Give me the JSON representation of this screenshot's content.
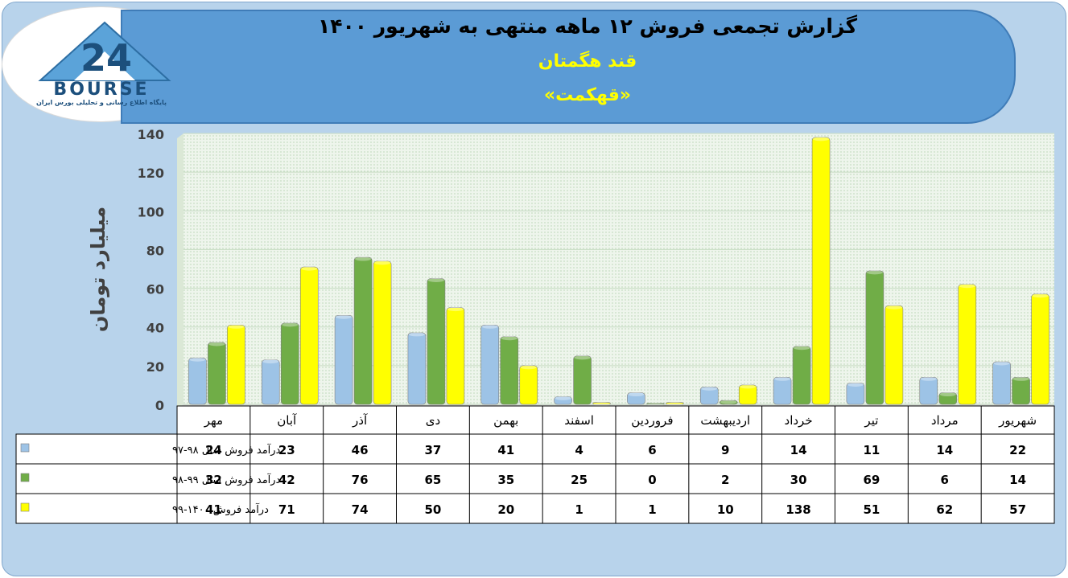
{
  "header": {
    "title": "گزارش تجمعی فروش ۱۲ ماهه منتهی به شهریور ۱۴۰۰",
    "company": "قند هگمتان",
    "symbol": "«قهکمت»"
  },
  "logo": {
    "mark": "24",
    "name": "BOURSE",
    "tagline": "پایگاه اطلاع رسانی و تحلیلی بورس ایران"
  },
  "colors": {
    "series1": "#9dc3e6",
    "series2": "#70ad47",
    "series3": "#ffff00",
    "banner": "#5b9bd5",
    "frame": "#b8d3eb"
  },
  "chart_data": {
    "type": "bar",
    "ylabel": "میلیارد تومان",
    "ylim": [
      0,
      140
    ],
    "yticks": [
      0,
      20,
      40,
      60,
      80,
      100,
      120,
      140
    ],
    "grid": true,
    "categories": [
      "مهر",
      "آبان",
      "آذر",
      "دی",
      "بهمن",
      "اسفند",
      "فروردین",
      "اردیبهشت",
      "خرداد",
      "تیر",
      "مرداد",
      "شهریور"
    ],
    "series": [
      {
        "name": "درآمد فروش سال ۹۸-۹۷",
        "color": "#9dc3e6",
        "values": [
          24,
          23,
          46,
          37,
          41,
          4,
          6,
          9,
          14,
          11,
          14,
          22
        ]
      },
      {
        "name": "درآمد فروش سال ۹۹-۹۸",
        "color": "#70ad47",
        "values": [
          32,
          42,
          76,
          65,
          35,
          25,
          0,
          2,
          30,
          69,
          6,
          14
        ]
      },
      {
        "name": "درآمد فروش ۱۴۰۰-۹۹",
        "color": "#ffff00",
        "values": [
          41,
          71,
          74,
          50,
          20,
          1,
          1,
          10,
          138,
          51,
          62,
          57
        ]
      }
    ]
  }
}
